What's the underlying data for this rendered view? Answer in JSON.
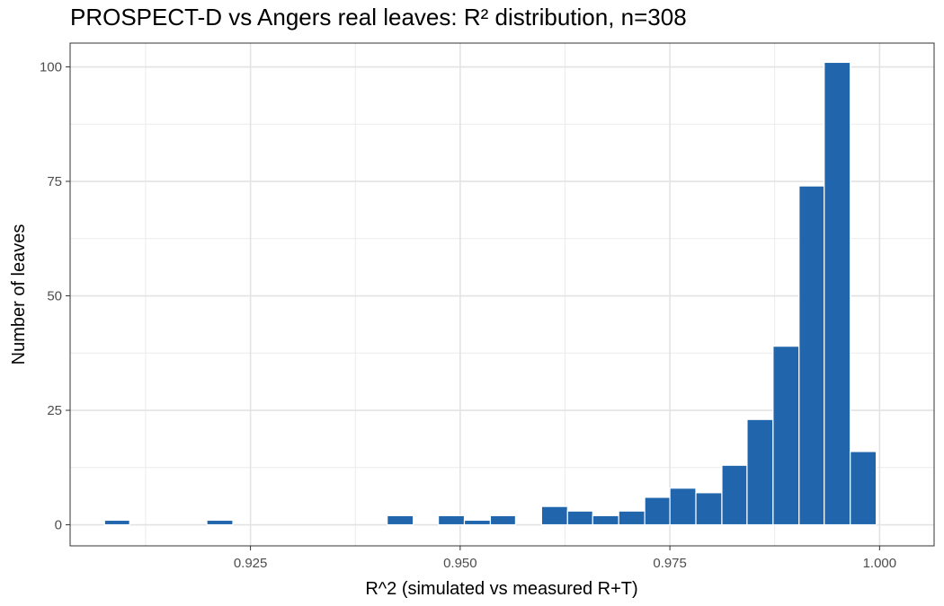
{
  "chart_data": {
    "type": "bar",
    "title": "PROSPECT-D vs Angers real leaves: R² distribution, n=308",
    "xlabel": "R^2 (simulated vs measured R+T)",
    "ylabel": "Number of leaves",
    "xlim": [
      0.9035,
      1.0065
    ],
    "ylim": [
      -4.6,
      105.2
    ],
    "x_ticks": [
      0.925,
      0.95,
      0.975,
      1.0
    ],
    "x_tick_labels": [
      "0.925",
      "0.950",
      "0.975",
      "1.000"
    ],
    "y_ticks": [
      0,
      25,
      50,
      75,
      100
    ],
    "y_tick_labels": [
      "0",
      "25",
      "50",
      "75",
      "100"
    ],
    "grid": true,
    "legend": "none",
    "bar_color": "#2166ac",
    "bins": [
      {
        "x0": 0.9076,
        "x1": 0.9106,
        "value": 1
      },
      {
        "x0": 0.9106,
        "x1": 0.9137,
        "value": 0
      },
      {
        "x0": 0.9137,
        "x1": 0.9168,
        "value": 0
      },
      {
        "x0": 0.9168,
        "x1": 0.9198,
        "value": 0
      },
      {
        "x0": 0.9198,
        "x1": 0.9229,
        "value": 1
      },
      {
        "x0": 0.9229,
        "x1": 0.926,
        "value": 0
      },
      {
        "x0": 0.926,
        "x1": 0.929,
        "value": 0
      },
      {
        "x0": 0.929,
        "x1": 0.9321,
        "value": 0
      },
      {
        "x0": 0.9321,
        "x1": 0.9352,
        "value": 0
      },
      {
        "x0": 0.9352,
        "x1": 0.9382,
        "value": 0
      },
      {
        "x0": 0.9382,
        "x1": 0.9413,
        "value": 0
      },
      {
        "x0": 0.9413,
        "x1": 0.9444,
        "value": 2
      },
      {
        "x0": 0.9444,
        "x1": 0.9474,
        "value": 0
      },
      {
        "x0": 0.9474,
        "x1": 0.9505,
        "value": 2
      },
      {
        "x0": 0.9505,
        "x1": 0.9536,
        "value": 1
      },
      {
        "x0": 0.9536,
        "x1": 0.9566,
        "value": 2
      },
      {
        "x0": 0.9566,
        "x1": 0.9597,
        "value": 0
      },
      {
        "x0": 0.9597,
        "x1": 0.9628,
        "value": 4
      },
      {
        "x0": 0.9628,
        "x1": 0.9658,
        "value": 3
      },
      {
        "x0": 0.9658,
        "x1": 0.9689,
        "value": 2
      },
      {
        "x0": 0.9689,
        "x1": 0.972,
        "value": 3
      },
      {
        "x0": 0.972,
        "x1": 0.975,
        "value": 6
      },
      {
        "x0": 0.975,
        "x1": 0.9781,
        "value": 8
      },
      {
        "x0": 0.9781,
        "x1": 0.9812,
        "value": 7
      },
      {
        "x0": 0.9812,
        "x1": 0.9842,
        "value": 13
      },
      {
        "x0": 0.9842,
        "x1": 0.9873,
        "value": 23
      },
      {
        "x0": 0.9873,
        "x1": 0.9904,
        "value": 39
      },
      {
        "x0": 0.9904,
        "x1": 0.9934,
        "value": 74
      },
      {
        "x0": 0.9934,
        "x1": 0.9965,
        "value": 101
      },
      {
        "x0": 0.9965,
        "x1": 0.9996,
        "value": 16
      }
    ]
  }
}
